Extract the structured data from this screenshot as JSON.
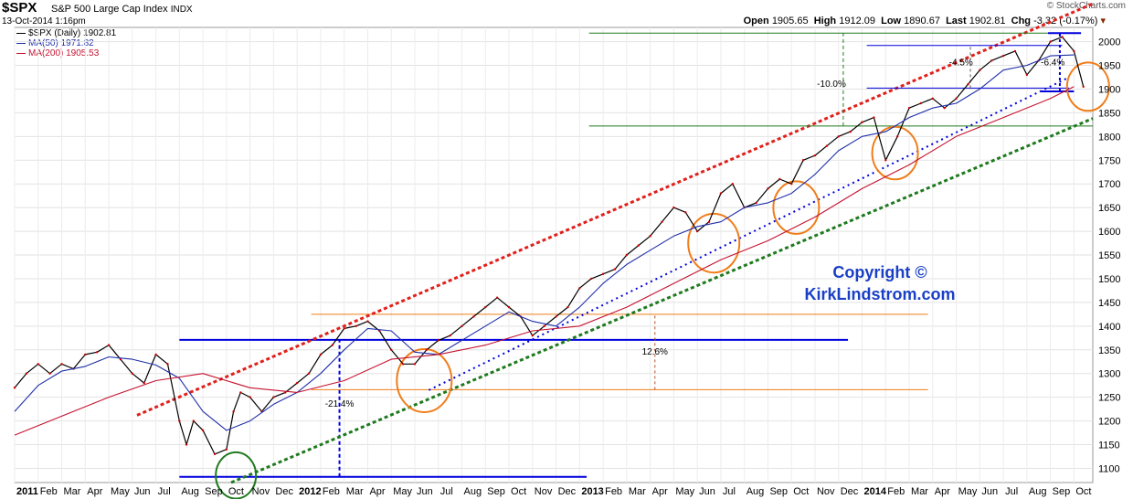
{
  "header": {
    "symbol": "$SPX",
    "name": "S&P 500 Large Cap Index",
    "exchange": "INDX",
    "date": "13-Oct-2014 1:16pm",
    "brand": "© StockCharts.com",
    "open_label": "Open",
    "open": "1905.65",
    "high_label": "High",
    "high": "1912.09",
    "low_label": "Low",
    "low": "1890.67",
    "last_label": "Last",
    "last": "1902.81",
    "chg_label": "Chg",
    "chg": "-3.32 (-0.17%)"
  },
  "legend": {
    "price": "$SPX (Daily) 1902.81",
    "ma50": "MA(50) 1971.82",
    "ma200": "MA(200) 1905.53"
  },
  "copyright": {
    "line1": "Copyright ©",
    "line2": "KirkLindstrom.com"
  },
  "colors": {
    "price": "#000000",
    "down": "#cc0000",
    "ma50": "#1f2fa8",
    "ma200": "#c4122f",
    "blue": "#0000dd",
    "red": "#e0201b",
    "green": "#1f7a1f",
    "orange": "#f07d1a",
    "copyright": "#1a3fc7"
  },
  "chart_data": {
    "type": "line",
    "title": "$SPX S&P 500 Large Cap Index INDX",
    "ylim": [
      1070,
      2030
    ],
    "y_ticks": [
      1100,
      1150,
      1200,
      1250,
      1300,
      1350,
      1400,
      1450,
      1500,
      1550,
      1600,
      1650,
      1700,
      1750,
      1800,
      1850,
      1900,
      1950,
      2000
    ],
    "x_ticks": [
      {
        "label": "2011",
        "t": 0
      },
      {
        "label": "Feb",
        "t": 1
      },
      {
        "label": "Mar",
        "t": 2
      },
      {
        "label": "Apr",
        "t": 3
      },
      {
        "label": "May",
        "t": 4
      },
      {
        "label": "Jun",
        "t": 5
      },
      {
        "label": "Jul",
        "t": 6
      },
      {
        "label": "Aug",
        "t": 7
      },
      {
        "label": "Sep",
        "t": 8
      },
      {
        "label": "Oct",
        "t": 9
      },
      {
        "label": "Nov",
        "t": 10
      },
      {
        "label": "Dec",
        "t": 11
      },
      {
        "label": "2012",
        "t": 12
      },
      {
        "label": "Feb",
        "t": 13
      },
      {
        "label": "Mar",
        "t": 14
      },
      {
        "label": "Apr",
        "t": 15
      },
      {
        "label": "May",
        "t": 16
      },
      {
        "label": "Jun",
        "t": 17
      },
      {
        "label": "Jul",
        "t": 18
      },
      {
        "label": "Aug",
        "t": 19
      },
      {
        "label": "Sep",
        "t": 20
      },
      {
        "label": "Oct",
        "t": 21
      },
      {
        "label": "Nov",
        "t": 22
      },
      {
        "label": "Dec",
        "t": 23
      },
      {
        "label": "2013",
        "t": 24
      },
      {
        "label": "Feb",
        "t": 25
      },
      {
        "label": "Mar",
        "t": 26
      },
      {
        "label": "Apr",
        "t": 27
      },
      {
        "label": "May",
        "t": 28
      },
      {
        "label": "Jun",
        "t": 29
      },
      {
        "label": "Jul",
        "t": 30
      },
      {
        "label": "Aug",
        "t": 31
      },
      {
        "label": "Sep",
        "t": 32
      },
      {
        "label": "Oct",
        "t": 33
      },
      {
        "label": "Nov",
        "t": 34
      },
      {
        "label": "Dec",
        "t": 35
      },
      {
        "label": "2014",
        "t": 36
      },
      {
        "label": "Feb",
        "t": 37
      },
      {
        "label": "Mar",
        "t": 38
      },
      {
        "label": "Apr",
        "t": 39
      },
      {
        "label": "May",
        "t": 40
      },
      {
        "label": "Jun",
        "t": 41
      },
      {
        "label": "Jul",
        "t": 42
      },
      {
        "label": "Aug",
        "t": 43
      },
      {
        "label": "Sep",
        "t": 44
      },
      {
        "label": "Oct",
        "t": 45
      }
    ],
    "x_range": [
      0,
      45.8
    ],
    "series": [
      {
        "name": "$SPX (Daily)",
        "t": [
          0,
          0.5,
          1,
          1.5,
          2,
          2.5,
          3,
          3.5,
          4,
          4.5,
          5,
          5.5,
          6,
          6.5,
          7,
          7.3,
          7.6,
          8,
          8.5,
          9,
          9.3,
          9.6,
          10,
          10.5,
          11,
          11.5,
          12,
          12.5,
          13,
          13.5,
          14,
          14.5,
          15,
          15.5,
          16,
          16.5,
          17,
          17.5,
          18,
          18.5,
          19,
          19.5,
          20,
          20.5,
          21,
          21.5,
          22,
          22.5,
          23,
          23.5,
          24,
          24.5,
          25,
          25.5,
          26,
          26.5,
          27,
          27.5,
          28,
          28.5,
          29,
          29.5,
          30,
          30.5,
          31,
          31.5,
          32,
          32.5,
          33,
          33.5,
          34,
          34.5,
          35,
          35.5,
          36,
          36.5,
          37,
          37.5,
          38,
          38.5,
          39,
          39.5,
          40,
          40.5,
          41,
          41.5,
          42,
          42.5,
          43,
          43.5,
          44,
          44.5,
          45,
          45.4
        ],
        "values": [
          1270,
          1300,
          1320,
          1300,
          1320,
          1310,
          1340,
          1345,
          1360,
          1330,
          1300,
          1280,
          1340,
          1320,
          1200,
          1150,
          1200,
          1180,
          1130,
          1140,
          1220,
          1260,
          1250,
          1220,
          1250,
          1260,
          1280,
          1300,
          1340,
          1360,
          1395,
          1400,
          1410,
          1390,
          1350,
          1320,
          1320,
          1350,
          1370,
          1380,
          1400,
          1420,
          1440,
          1460,
          1440,
          1420,
          1380,
          1400,
          1420,
          1440,
          1480,
          1500,
          1510,
          1520,
          1550,
          1570,
          1590,
          1620,
          1650,
          1640,
          1600,
          1620,
          1680,
          1700,
          1650,
          1660,
          1690,
          1710,
          1700,
          1750,
          1760,
          1780,
          1800,
          1810,
          1830,
          1840,
          1750,
          1800,
          1860,
          1870,
          1880,
          1860,
          1880,
          1910,
          1940,
          1960,
          1970,
          1980,
          1930,
          1960,
          2000,
          2010,
          1980,
          1905
        ]
      },
      {
        "name": "MA(50)",
        "t": [
          0,
          1,
          2,
          3,
          4,
          5,
          6,
          7,
          8,
          9,
          10,
          11,
          12,
          13,
          14,
          15,
          16,
          17,
          18,
          19,
          20,
          21,
          22,
          23,
          24,
          25,
          26,
          27,
          28,
          29,
          30,
          31,
          32,
          33,
          34,
          35,
          36,
          37,
          38,
          39,
          40,
          41,
          42,
          43,
          44,
          45
        ],
        "values": [
          1220,
          1275,
          1305,
          1315,
          1335,
          1330,
          1318,
          1290,
          1220,
          1180,
          1200,
          1235,
          1260,
          1300,
          1350,
          1395,
          1390,
          1345,
          1340,
          1370,
          1400,
          1430,
          1410,
          1400,
          1440,
          1490,
          1530,
          1560,
          1590,
          1610,
          1620,
          1650,
          1660,
          1680,
          1720,
          1770,
          1800,
          1810,
          1840,
          1860,
          1870,
          1900,
          1940,
          1950,
          1970,
          1972
        ]
      },
      {
        "name": "MA(200)",
        "t": [
          0,
          2,
          4,
          6,
          8,
          10,
          12,
          14,
          16,
          18,
          20,
          22,
          24,
          26,
          28,
          30,
          32,
          34,
          36,
          38,
          40,
          42,
          44,
          45
        ],
        "values": [
          1170,
          1210,
          1250,
          1285,
          1300,
          1270,
          1260,
          1285,
          1330,
          1340,
          1360,
          1390,
          1400,
          1440,
          1490,
          1540,
          1580,
          1630,
          1690,
          1740,
          1800,
          1840,
          1880,
          1905
        ]
      }
    ],
    "annotations": [
      {
        "label": "-21.4%",
        "t": 13.8,
        "value": 1230
      },
      {
        "label": "12.6%",
        "t": 27.2,
        "value": 1340
      },
      {
        "label": "-10.0%",
        "t": 34.7,
        "value": 1905
      },
      {
        "label": "-4.5%",
        "t": 40.2,
        "value": 1950
      },
      {
        "label": "-6.4%",
        "t": 44.1,
        "value": 1950
      }
    ],
    "legend": "top-left",
    "grid": true
  }
}
